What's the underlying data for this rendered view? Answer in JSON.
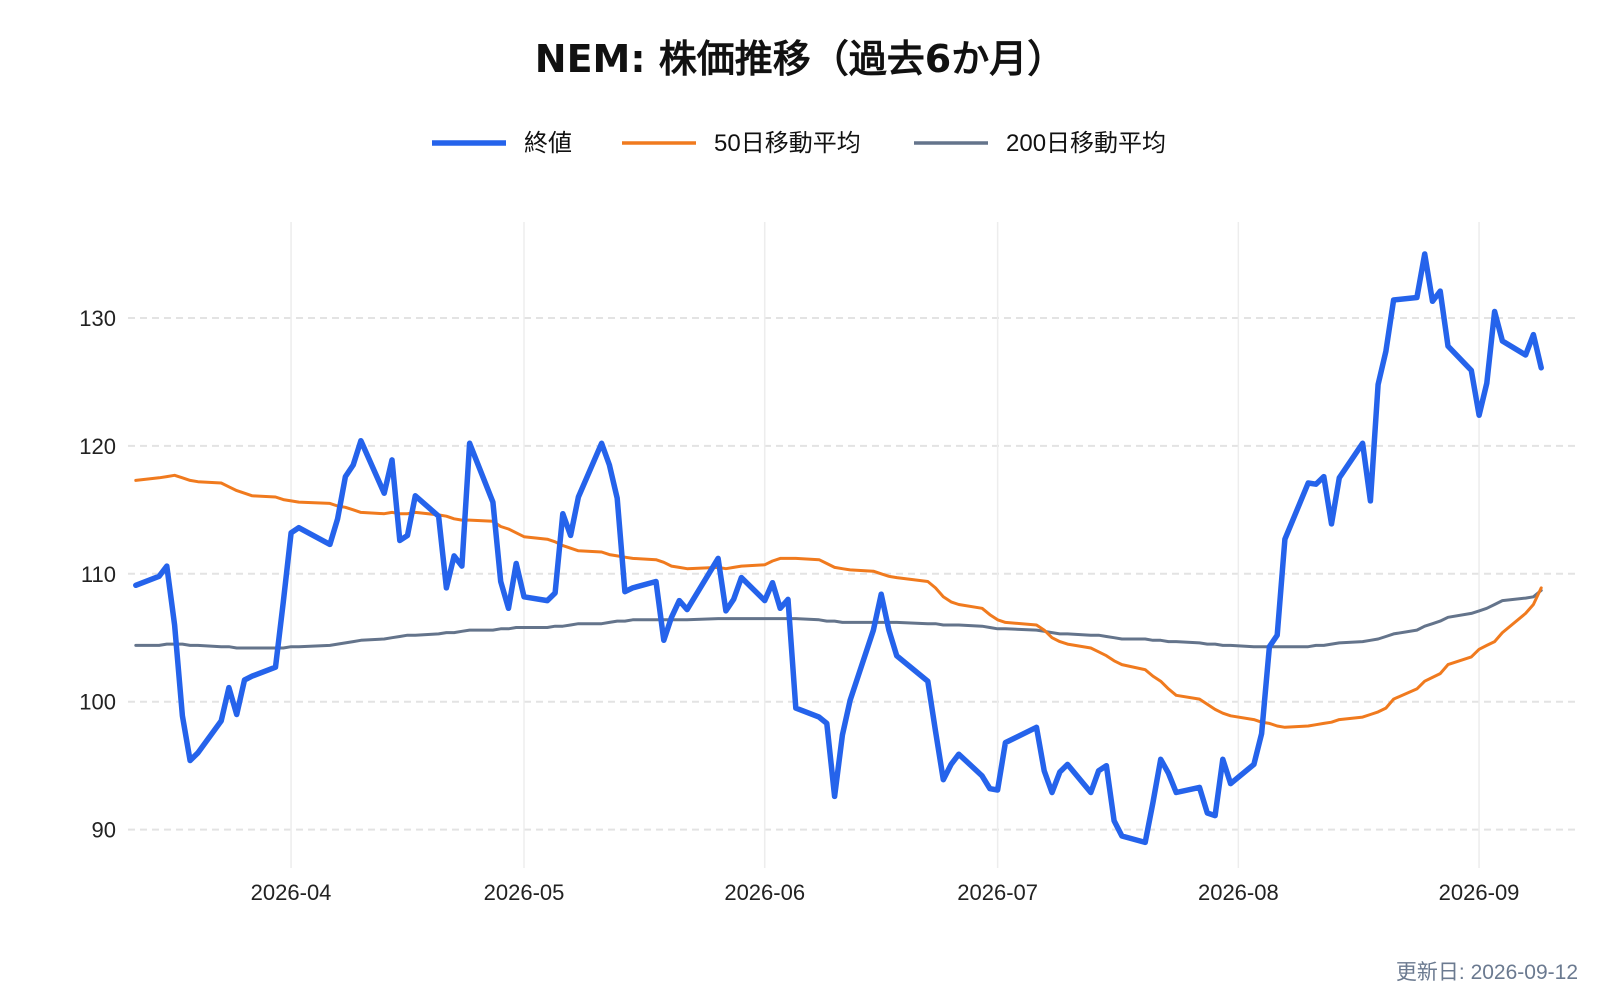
{
  "footer": {
    "updated": "更新日: 2026-09-12"
  },
  "colors": {
    "close": "#2563eb",
    "ma50": "#f07a1e",
    "ma200": "#64748b",
    "grid": "#e3e3e3"
  },
  "chart_data": {
    "type": "line",
    "title": "NEM: 株価推移（過去6か月）",
    "xlabel": "",
    "ylabel": "",
    "legend": "top-center",
    "grid": true,
    "xlim": [
      "2026-03-11",
      "2026-09-14"
    ],
    "ylim": [
      87,
      137.5
    ],
    "y_ticks": [
      90,
      100,
      110,
      120,
      130
    ],
    "x_ticks": [
      "2026-04-01",
      "2026-05-01",
      "2026-06-01",
      "2026-07-01",
      "2026-08-01",
      "2026-09-01"
    ],
    "x_tick_labels": [
      "2026-04",
      "2026-05",
      "2026-06",
      "2026-07",
      "2026-08",
      "2026-09"
    ],
    "series": [
      {
        "name": "終値",
        "key": "close",
        "x": [
          "2026-03-12",
          "2026-03-15",
          "2026-03-16",
          "2026-03-17",
          "2026-03-18",
          "2026-03-19",
          "2026-03-20",
          "2026-03-23",
          "2026-03-24",
          "2026-03-25",
          "2026-03-26",
          "2026-03-27",
          "2026-03-30",
          "2026-03-31",
          "2026-04-01",
          "2026-04-02",
          "2026-04-06",
          "2026-04-07",
          "2026-04-08",
          "2026-04-09",
          "2026-04-10",
          "2026-04-13",
          "2026-04-14",
          "2026-04-15",
          "2026-04-16",
          "2026-04-17",
          "2026-04-20",
          "2026-04-21",
          "2026-04-22",
          "2026-04-23",
          "2026-04-24",
          "2026-04-27",
          "2026-04-28",
          "2026-04-29",
          "2026-04-30",
          "2026-05-01",
          "2026-05-04",
          "2026-05-05",
          "2026-05-06",
          "2026-05-07",
          "2026-05-08",
          "2026-05-11",
          "2026-05-12",
          "2026-05-13",
          "2026-05-14",
          "2026-05-15",
          "2026-05-18",
          "2026-05-19",
          "2026-05-20",
          "2026-05-21",
          "2026-05-22",
          "2026-05-26",
          "2026-05-27",
          "2026-05-28",
          "2026-05-29",
          "2026-06-01",
          "2026-06-02",
          "2026-06-03",
          "2026-06-04",
          "2026-06-05",
          "2026-06-08",
          "2026-06-09",
          "2026-06-10",
          "2026-06-11",
          "2026-06-12",
          "2026-06-15",
          "2026-06-16",
          "2026-06-17",
          "2026-06-18",
          "2026-06-22",
          "2026-06-23",
          "2026-06-24",
          "2026-06-25",
          "2026-06-26",
          "2026-06-29",
          "2026-06-30",
          "2026-07-01",
          "2026-07-02",
          "2026-07-06",
          "2026-07-07",
          "2026-07-08",
          "2026-07-09",
          "2026-07-10",
          "2026-07-13",
          "2026-07-14",
          "2026-07-15",
          "2026-07-16",
          "2026-07-17",
          "2026-07-20",
          "2026-07-21",
          "2026-07-22",
          "2026-07-23",
          "2026-07-24",
          "2026-07-27",
          "2026-07-28",
          "2026-07-29",
          "2026-07-30",
          "2026-07-31",
          "2026-08-03",
          "2026-08-04",
          "2026-08-05",
          "2026-08-06",
          "2026-08-07",
          "2026-08-10",
          "2026-08-11",
          "2026-08-12",
          "2026-08-13",
          "2026-08-14",
          "2026-08-17",
          "2026-08-18",
          "2026-08-19",
          "2026-08-20",
          "2026-08-21",
          "2026-08-24",
          "2026-08-25",
          "2026-08-26",
          "2026-08-27",
          "2026-08-28",
          "2026-08-31",
          "2026-09-01",
          "2026-09-02",
          "2026-09-03",
          "2026-09-04",
          "2026-09-07",
          "2026-09-08",
          "2026-09-09"
        ],
        "values": [
          109.1,
          109.8,
          110.6,
          106.0,
          98.9,
          95.4,
          96.0,
          98.5,
          101.1,
          99.0,
          101.7,
          102.0,
          102.7,
          107.8,
          113.2,
          113.6,
          112.3,
          114.3,
          117.6,
          118.5,
          120.4,
          116.3,
          118.9,
          112.6,
          113.0,
          116.1,
          114.5,
          108.9,
          111.4,
          110.6,
          120.2,
          115.6,
          109.4,
          107.3,
          110.8,
          108.2,
          107.9,
          108.5,
          114.7,
          113.0,
          116.0,
          120.2,
          118.5,
          115.9,
          108.6,
          108.9,
          109.4,
          104.8,
          106.6,
          107.9,
          107.2,
          111.2,
          107.1,
          108.0,
          109.7,
          107.9,
          109.3,
          107.3,
          108.0,
          99.5,
          98.8,
          98.3,
          92.6,
          97.4,
          100.1,
          105.6,
          108.4,
          105.6,
          103.6,
          101.6,
          97.7,
          93.9,
          95.1,
          95.9,
          94.2,
          93.2,
          93.1,
          96.8,
          98.0,
          94.6,
          92.9,
          94.5,
          95.1,
          92.9,
          94.6,
          95.0,
          90.7,
          89.5,
          89.0,
          92.1,
          95.5,
          94.4,
          92.9,
          93.3,
          91.3,
          91.1,
          95.5,
          93.6,
          95.1,
          97.5,
          104.3,
          105.2,
          112.7,
          117.1,
          117.0,
          117.6,
          113.9,
          117.5,
          120.2,
          115.7,
          124.8,
          127.4,
          131.4,
          131.6,
          135.0,
          131.3,
          132.1,
          127.8,
          125.9,
          122.4,
          124.9,
          130.5,
          128.2,
          127.1,
          128.7,
          126.1
        ]
      },
      {
        "name": "50日移動平均",
        "key": "ma50",
        "x": [
          "2026-03-12",
          "2026-03-15",
          "2026-03-16",
          "2026-03-17",
          "2026-03-18",
          "2026-03-19",
          "2026-03-20",
          "2026-03-23",
          "2026-03-24",
          "2026-03-25",
          "2026-03-26",
          "2026-03-27",
          "2026-03-30",
          "2026-03-31",
          "2026-04-01",
          "2026-04-02",
          "2026-04-06",
          "2026-04-07",
          "2026-04-08",
          "2026-04-09",
          "2026-04-10",
          "2026-04-13",
          "2026-04-14",
          "2026-04-15",
          "2026-04-16",
          "2026-04-17",
          "2026-04-20",
          "2026-04-21",
          "2026-04-22",
          "2026-04-23",
          "2026-04-24",
          "2026-04-27",
          "2026-04-28",
          "2026-04-29",
          "2026-04-30",
          "2026-05-01",
          "2026-05-04",
          "2026-05-05",
          "2026-05-06",
          "2026-05-07",
          "2026-05-08",
          "2026-05-11",
          "2026-05-12",
          "2026-05-13",
          "2026-05-14",
          "2026-05-15",
          "2026-05-18",
          "2026-05-19",
          "2026-05-20",
          "2026-05-21",
          "2026-05-22",
          "2026-05-26",
          "2026-05-27",
          "2026-05-28",
          "2026-05-29",
          "2026-06-01",
          "2026-06-02",
          "2026-06-03",
          "2026-06-04",
          "2026-06-05",
          "2026-06-08",
          "2026-06-09",
          "2026-06-10",
          "2026-06-11",
          "2026-06-12",
          "2026-06-15",
          "2026-06-16",
          "2026-06-17",
          "2026-06-18",
          "2026-06-22",
          "2026-06-23",
          "2026-06-24",
          "2026-06-25",
          "2026-06-26",
          "2026-06-29",
          "2026-06-30",
          "2026-07-01",
          "2026-07-02",
          "2026-07-06",
          "2026-07-07",
          "2026-07-08",
          "2026-07-09",
          "2026-07-10",
          "2026-07-13",
          "2026-07-14",
          "2026-07-15",
          "2026-07-16",
          "2026-07-17",
          "2026-07-20",
          "2026-07-21",
          "2026-07-22",
          "2026-07-23",
          "2026-07-24",
          "2026-07-27",
          "2026-07-28",
          "2026-07-29",
          "2026-07-30",
          "2026-07-31",
          "2026-08-03",
          "2026-08-04",
          "2026-08-05",
          "2026-08-06",
          "2026-08-07",
          "2026-08-10",
          "2026-08-11",
          "2026-08-12",
          "2026-08-13",
          "2026-08-14",
          "2026-08-17",
          "2026-08-18",
          "2026-08-19",
          "2026-08-20",
          "2026-08-21",
          "2026-08-24",
          "2026-08-25",
          "2026-08-26",
          "2026-08-27",
          "2026-08-28",
          "2026-08-31",
          "2026-09-01",
          "2026-09-02",
          "2026-09-03",
          "2026-09-04",
          "2026-09-07",
          "2026-09-08",
          "2026-09-09"
        ],
        "values": [
          117.3,
          117.5,
          117.6,
          117.7,
          117.5,
          117.3,
          117.2,
          117.1,
          116.8,
          116.5,
          116.3,
          116.1,
          116.0,
          115.8,
          115.7,
          115.6,
          115.5,
          115.3,
          115.2,
          115.0,
          114.8,
          114.7,
          114.8,
          114.7,
          114.7,
          114.8,
          114.6,
          114.5,
          114.3,
          114.2,
          114.2,
          114.1,
          113.7,
          113.5,
          113.2,
          112.9,
          112.7,
          112.5,
          112.2,
          112.0,
          111.8,
          111.7,
          111.5,
          111.4,
          111.3,
          111.2,
          111.1,
          110.9,
          110.6,
          110.5,
          110.4,
          110.5,
          110.4,
          110.5,
          110.6,
          110.7,
          111.0,
          111.2,
          111.2,
          111.2,
          111.1,
          110.8,
          110.5,
          110.4,
          110.3,
          110.2,
          110.0,
          109.8,
          109.7,
          109.4,
          108.9,
          108.2,
          107.8,
          107.6,
          107.3,
          106.8,
          106.4,
          106.2,
          106.0,
          105.6,
          105.0,
          104.7,
          104.5,
          104.2,
          103.9,
          103.6,
          103.2,
          102.9,
          102.5,
          102.0,
          101.6,
          101.0,
          100.5,
          100.2,
          99.8,
          99.4,
          99.1,
          98.9,
          98.6,
          98.4,
          98.3,
          98.1,
          98.0,
          98.1,
          98.2,
          98.3,
          98.4,
          98.6,
          98.8,
          99.0,
          99.2,
          99.5,
          100.2,
          101.0,
          101.6,
          101.9,
          102.2,
          102.9,
          103.5,
          104.1,
          104.4,
          104.7,
          105.4,
          106.9,
          107.6,
          108.9
        ]
      },
      {
        "name": "200日移動平均",
        "key": "ma200",
        "x": [
          "2026-03-12",
          "2026-03-15",
          "2026-03-16",
          "2026-03-17",
          "2026-03-18",
          "2026-03-19",
          "2026-03-20",
          "2026-03-23",
          "2026-03-24",
          "2026-03-25",
          "2026-03-26",
          "2026-03-27",
          "2026-03-30",
          "2026-03-31",
          "2026-04-01",
          "2026-04-02",
          "2026-04-06",
          "2026-04-07",
          "2026-04-08",
          "2026-04-09",
          "2026-04-10",
          "2026-04-13",
          "2026-04-14",
          "2026-04-15",
          "2026-04-16",
          "2026-04-17",
          "2026-04-20",
          "2026-04-21",
          "2026-04-22",
          "2026-04-23",
          "2026-04-24",
          "2026-04-27",
          "2026-04-28",
          "2026-04-29",
          "2026-04-30",
          "2026-05-01",
          "2026-05-04",
          "2026-05-05",
          "2026-05-06",
          "2026-05-07",
          "2026-05-08",
          "2026-05-11",
          "2026-05-12",
          "2026-05-13",
          "2026-05-14",
          "2026-05-15",
          "2026-05-18",
          "2026-05-19",
          "2026-05-20",
          "2026-05-21",
          "2026-05-22",
          "2026-05-26",
          "2026-05-27",
          "2026-05-28",
          "2026-05-29",
          "2026-06-01",
          "2026-06-02",
          "2026-06-03",
          "2026-06-04",
          "2026-06-05",
          "2026-06-08",
          "2026-06-09",
          "2026-06-10",
          "2026-06-11",
          "2026-06-12",
          "2026-06-15",
          "2026-06-16",
          "2026-06-17",
          "2026-06-18",
          "2026-06-22",
          "2026-06-23",
          "2026-06-24",
          "2026-06-25",
          "2026-06-26",
          "2026-06-29",
          "2026-06-30",
          "2026-07-01",
          "2026-07-02",
          "2026-07-06",
          "2026-07-07",
          "2026-07-08",
          "2026-07-09",
          "2026-07-10",
          "2026-07-13",
          "2026-07-14",
          "2026-07-15",
          "2026-07-16",
          "2026-07-17",
          "2026-07-20",
          "2026-07-21",
          "2026-07-22",
          "2026-07-23",
          "2026-07-24",
          "2026-07-27",
          "2026-07-28",
          "2026-07-29",
          "2026-07-30",
          "2026-07-31",
          "2026-08-03",
          "2026-08-04",
          "2026-08-05",
          "2026-08-06",
          "2026-08-07",
          "2026-08-10",
          "2026-08-11",
          "2026-08-12",
          "2026-08-13",
          "2026-08-14",
          "2026-08-17",
          "2026-08-18",
          "2026-08-19",
          "2026-08-20",
          "2026-08-21",
          "2026-08-24",
          "2026-08-25",
          "2026-08-26",
          "2026-08-27",
          "2026-08-28",
          "2026-08-31",
          "2026-09-01",
          "2026-09-02",
          "2026-09-03",
          "2026-09-04",
          "2026-09-07",
          "2026-09-08",
          "2026-09-09"
        ],
        "values": [
          104.4,
          104.4,
          104.5,
          104.5,
          104.5,
          104.4,
          104.4,
          104.3,
          104.3,
          104.2,
          104.2,
          104.2,
          104.2,
          104.2,
          104.3,
          104.3,
          104.4,
          104.5,
          104.6,
          104.7,
          104.8,
          104.9,
          105.0,
          105.1,
          105.2,
          105.2,
          105.3,
          105.4,
          105.4,
          105.5,
          105.6,
          105.6,
          105.7,
          105.7,
          105.8,
          105.8,
          105.8,
          105.9,
          105.9,
          106.0,
          106.1,
          106.1,
          106.2,
          106.3,
          106.3,
          106.4,
          106.4,
          106.4,
          106.4,
          106.4,
          106.4,
          106.5,
          106.5,
          106.5,
          106.5,
          106.5,
          106.5,
          106.5,
          106.5,
          106.5,
          106.4,
          106.3,
          106.3,
          106.2,
          106.2,
          106.2,
          106.2,
          106.2,
          106.2,
          106.1,
          106.1,
          106.0,
          106.0,
          106.0,
          105.9,
          105.8,
          105.7,
          105.7,
          105.6,
          105.5,
          105.4,
          105.3,
          105.3,
          105.2,
          105.2,
          105.1,
          105.0,
          104.9,
          104.9,
          104.8,
          104.8,
          104.7,
          104.7,
          104.6,
          104.5,
          104.5,
          104.4,
          104.4,
          104.3,
          104.3,
          104.3,
          104.3,
          104.3,
          104.3,
          104.4,
          104.4,
          104.5,
          104.6,
          104.7,
          104.8,
          104.9,
          105.1,
          105.3,
          105.6,
          105.9,
          106.1,
          106.3,
          106.6,
          106.9,
          107.1,
          107.3,
          107.6,
          107.9,
          108.1,
          108.2,
          108.7
        ]
      }
    ]
  }
}
